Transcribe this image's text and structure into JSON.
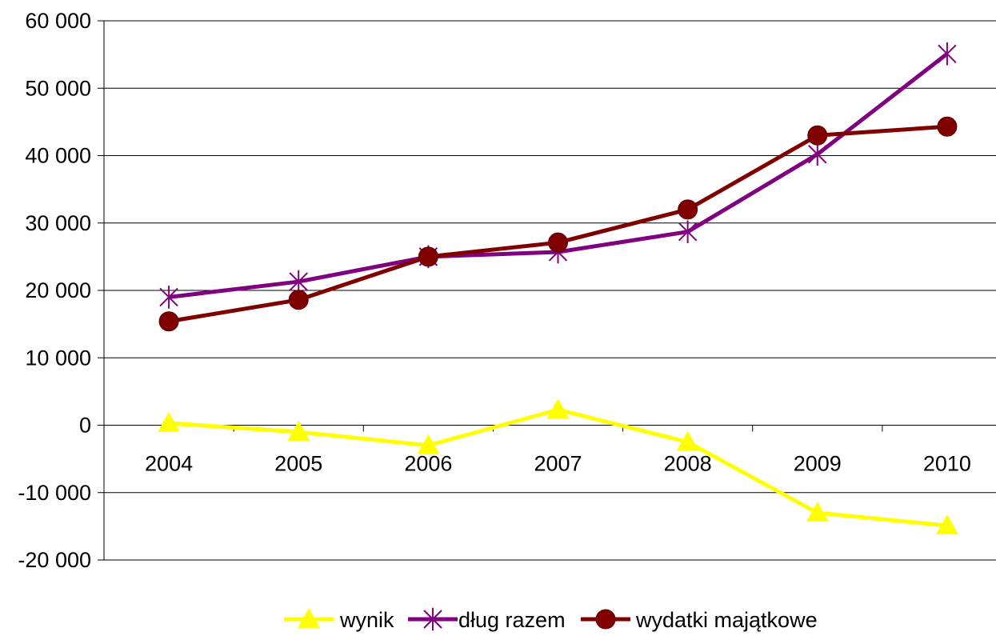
{
  "chart_data": {
    "type": "line",
    "title": "",
    "xlabel": "",
    "ylabel": "",
    "categories": [
      "2004",
      "2005",
      "2006",
      "2007",
      "2008",
      "2009",
      "2010"
    ],
    "ylim": [
      -20000,
      60000
    ],
    "yticks": [
      -20000,
      -10000,
      0,
      10000,
      20000,
      30000,
      40000,
      50000,
      60000
    ],
    "ytick_labels": [
      "-20 000",
      "-10 000",
      "0",
      "10 000",
      "20 000",
      "30 000",
      "40 000",
      "50 000",
      "60 000"
    ],
    "grid": "horizontal",
    "legend_position": "bottom",
    "series": [
      {
        "name": "wynik",
        "color": "#FFFF00",
        "marker": "triangle",
        "values": [
          300,
          -1000,
          -3000,
          2300,
          -2500,
          -13000,
          -14900
        ]
      },
      {
        "name": "dług razem",
        "color": "#800080",
        "marker": "star",
        "values": [
          19000,
          21300,
          25000,
          25700,
          28700,
          40200,
          55100
        ]
      },
      {
        "name": "wydatki majątkowe",
        "color": "#800000",
        "marker": "circle",
        "values": [
          15400,
          18600,
          25000,
          27100,
          32000,
          43000,
          44300
        ]
      }
    ]
  }
}
